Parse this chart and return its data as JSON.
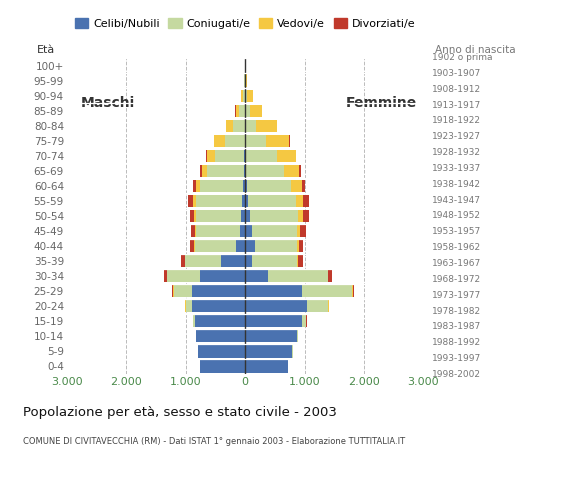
{
  "age_groups": [
    "0-4",
    "5-9",
    "10-14",
    "15-19",
    "20-24",
    "25-29",
    "30-34",
    "35-39",
    "40-44",
    "45-49",
    "50-54",
    "55-59",
    "60-64",
    "65-69",
    "70-74",
    "75-79",
    "80-84",
    "85-89",
    "90-94",
    "95-99",
    "100+"
  ],
  "birth_years": [
    "1998-2002",
    "1993-1997",
    "1988-1992",
    "1983-1987",
    "1978-1982",
    "1973-1977",
    "1968-1972",
    "1963-1967",
    "1958-1962",
    "1953-1957",
    "1948-1952",
    "1943-1947",
    "1938-1942",
    "1933-1937",
    "1928-1932",
    "1923-1927",
    "1918-1922",
    "1913-1917",
    "1908-1912",
    "1903-1907",
    "1902 o prima"
  ],
  "male_celibe": [
    760,
    790,
    820,
    850,
    900,
    900,
    750,
    400,
    160,
    90,
    70,
    50,
    30,
    20,
    10,
    5,
    0,
    0,
    0,
    0,
    0
  ],
  "male_coniugato": [
    2,
    5,
    10,
    20,
    100,
    300,
    560,
    610,
    690,
    730,
    760,
    780,
    720,
    620,
    500,
    340,
    200,
    100,
    40,
    10,
    5
  ],
  "male_vedovo": [
    0,
    0,
    0,
    0,
    2,
    5,
    5,
    5,
    10,
    20,
    30,
    50,
    70,
    90,
    130,
    180,
    120,
    60,
    20,
    5,
    0
  ],
  "male_divorziato": [
    0,
    0,
    0,
    5,
    10,
    20,
    50,
    60,
    60,
    70,
    70,
    80,
    50,
    30,
    10,
    5,
    5,
    5,
    0,
    0,
    0
  ],
  "female_nubile": [
    720,
    790,
    870,
    950,
    1050,
    950,
    380,
    120,
    160,
    110,
    80,
    50,
    30,
    20,
    10,
    5,
    0,
    0,
    0,
    0,
    0
  ],
  "female_coniugata": [
    5,
    10,
    20,
    80,
    350,
    850,
    1010,
    760,
    710,
    760,
    810,
    800,
    750,
    640,
    520,
    340,
    180,
    80,
    30,
    10,
    5
  ],
  "female_vedova": [
    0,
    0,
    0,
    2,
    5,
    10,
    10,
    10,
    30,
    60,
    80,
    120,
    180,
    250,
    320,
    400,
    350,
    200,
    100,
    30,
    5
  ],
  "female_divorziata": [
    0,
    0,
    0,
    5,
    10,
    30,
    70,
    80,
    80,
    100,
    100,
    100,
    50,
    25,
    10,
    5,
    5,
    5,
    0,
    0,
    0
  ],
  "color_celibe": "#4a72b0",
  "color_coniugato": "#c5d9a0",
  "color_vedovo": "#f5c842",
  "color_divorziato": "#c0392b",
  "xlim": 3000,
  "title": "Popolazione per età, sesso e stato civile - 2003",
  "subtitle": "COMUNE DI CIVITAVECCHIA (RM) - Dati ISTAT 1° gennaio 2003 - Elaborazione TUTTITALIA.IT",
  "legend_labels": [
    "Celibi/Nubili",
    "Coniugati/e",
    "Vedovi/e",
    "Divorziati/e"
  ],
  "xtick_labels": [
    "3.000",
    "2.000",
    "1.000",
    "0",
    "1.000",
    "2.000",
    "3.000"
  ],
  "xticks": [
    -3000,
    -2000,
    -1000,
    0,
    1000,
    2000,
    3000
  ],
  "ylabel_right": "Anno di nascita",
  "label_maschi": "Maschi",
  "label_femmine": "Femmine"
}
